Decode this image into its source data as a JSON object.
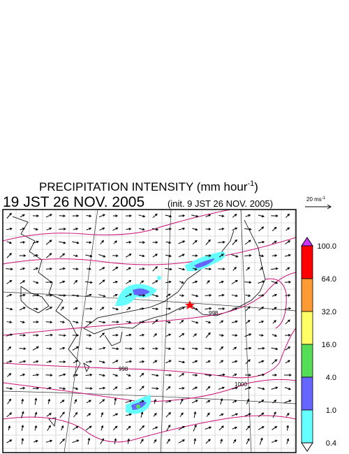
{
  "header": {
    "title_main": "PRECIPITATION INTENSITY (mm hour",
    "title_sup": "-1",
    "title_end": ")",
    "valid_time": "19 JST 26 NOV. 2005",
    "init_time": "(init. 9 JST 26 NOV. 2005)"
  },
  "vector_scale": {
    "label": "20 ms",
    "sup": "-1"
  },
  "colorbar": {
    "labels": [
      "100.0",
      "64.0",
      "32.0",
      "16.0",
      "4.0",
      "1.0",
      "0.4"
    ],
    "colors": [
      "#ff0000",
      "#ff9933",
      "#ffff66",
      "#55dd55",
      "#6666ff",
      "#66ffff"
    ],
    "over_color": "#cc33ff",
    "under_color": "#ffffff"
  },
  "isobar_labels": [
    "998",
    "998",
    "1000"
  ]
}
